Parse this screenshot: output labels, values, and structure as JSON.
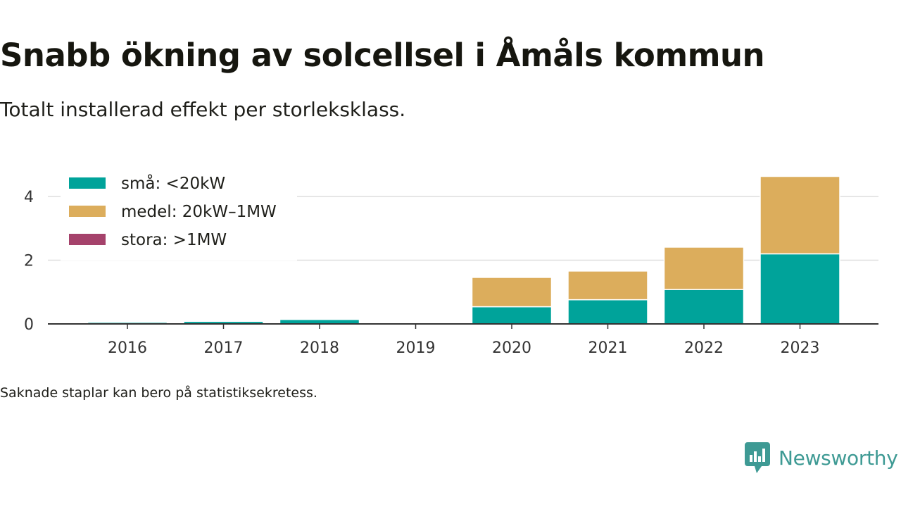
{
  "header": {
    "title": "Snabb ökning av solcellsel i Åmåls kommun",
    "subtitle": "Totalt installerad effekt per storleksklass."
  },
  "footnote": "Saknade staplar kan bero på statistiksekretess.",
  "brand": {
    "name": "Newsworthy",
    "logo_icon": "newsworthy-logo-icon",
    "color": "#3e9a94"
  },
  "chart_data": {
    "type": "bar",
    "stacked": true,
    "categories": [
      "2016",
      "2017",
      "2018",
      "2019",
      "2020",
      "2021",
      "2022",
      "2023"
    ],
    "series": [
      {
        "name": "små: <20kW",
        "color": "#00a39a",
        "values": [
          0.05,
          0.08,
          0.14,
          0,
          0.54,
          0.76,
          1.08,
          2.2
        ]
      },
      {
        "name": "medel: 20kW–1MW",
        "color": "#dcad5c",
        "values": [
          0,
          0,
          0,
          0,
          0.92,
          0.9,
          1.33,
          2.43
        ]
      },
      {
        "name": "stora: >1MW",
        "color": "#a5426b",
        "values": [
          0,
          0,
          0,
          0,
          0,
          0,
          0,
          0
        ]
      }
    ],
    "yticks": [
      0,
      2,
      4
    ],
    "ylim": [
      0,
      4.8
    ],
    "grid": true,
    "legend_position": "top-left"
  }
}
